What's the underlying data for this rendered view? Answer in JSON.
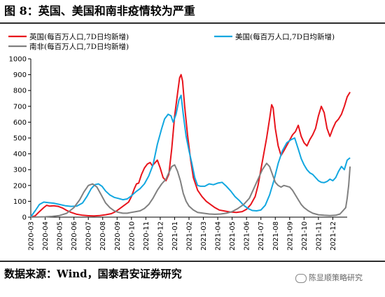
{
  "header": {
    "title": "图 8：英国、美国和南非疫情较为严重"
  },
  "footer": {
    "source": "数据来源：Wind，国泰君安证券研究",
    "watermark": "陈显顺策略研究"
  },
  "chart_data": {
    "type": "line",
    "title": "",
    "xlabel": "",
    "ylabel": "",
    "ylim": [
      0,
      1000
    ],
    "yticks": [
      "0",
      "100",
      "200",
      "300",
      "400",
      "500",
      "600",
      "700",
      "800",
      "900",
      "1000"
    ],
    "xticks": [
      "2020-03",
      "2020-04",
      "2020-05",
      "2020-06",
      "2020-07",
      "2020-08",
      "2020-09",
      "2020-10",
      "2020-11",
      "2020-12",
      "2021-01",
      "2021-02",
      "2021-03",
      "2021-04",
      "2021-05",
      "2021-06",
      "2021-07",
      "2021-08",
      "2021-09",
      "2021-10",
      "2021-11",
      "2021-12"
    ],
    "grid": false,
    "legend_position": "top",
    "series": [
      {
        "name": "英国(每百万人口,7D日均新增)",
        "color": "#e8141c",
        "points": [
          [
            0,
            1
          ],
          [
            0.3,
            8
          ],
          [
            0.6,
            35
          ],
          [
            0.9,
            60
          ],
          [
            1.1,
            75
          ],
          [
            1.3,
            70
          ],
          [
            1.6,
            72
          ],
          [
            1.9,
            68
          ],
          [
            2.2,
            58
          ],
          [
            2.5,
            42
          ],
          [
            2.8,
            30
          ],
          [
            3.2,
            18
          ],
          [
            3.6,
            12
          ],
          [
            4.0,
            9
          ],
          [
            4.4,
            8
          ],
          [
            4.8,
            10
          ],
          [
            5.2,
            15
          ],
          [
            5.6,
            22
          ],
          [
            5.9,
            35
          ],
          [
            6.2,
            55
          ],
          [
            6.5,
            75
          ],
          [
            6.8,
            95
          ],
          [
            7.0,
            130
          ],
          [
            7.2,
            180
          ],
          [
            7.35,
            210
          ],
          [
            7.5,
            215
          ],
          [
            7.7,
            270
          ],
          [
            7.9,
            310
          ],
          [
            8.1,
            335
          ],
          [
            8.3,
            345
          ],
          [
            8.45,
            325
          ],
          [
            8.6,
            340
          ],
          [
            8.8,
            360
          ],
          [
            9.0,
            310
          ],
          [
            9.2,
            250
          ],
          [
            9.4,
            230
          ],
          [
            9.6,
            270
          ],
          [
            9.8,
            430
          ],
          [
            10.0,
            640
          ],
          [
            10.2,
            780
          ],
          [
            10.35,
            880
          ],
          [
            10.45,
            900
          ],
          [
            10.55,
            860
          ],
          [
            10.7,
            700
          ],
          [
            10.9,
            520
          ],
          [
            11.1,
            370
          ],
          [
            11.3,
            250
          ],
          [
            11.6,
            170
          ],
          [
            11.9,
            130
          ],
          [
            12.2,
            100
          ],
          [
            12.5,
            80
          ],
          [
            12.8,
            60
          ],
          [
            13.1,
            45
          ],
          [
            13.5,
            38
          ],
          [
            13.9,
            32
          ],
          [
            14.3,
            30
          ],
          [
            14.7,
            35
          ],
          [
            15.0,
            50
          ],
          [
            15.3,
            80
          ],
          [
            15.6,
            130
          ],
          [
            15.8,
            200
          ],
          [
            16.0,
            300
          ],
          [
            16.2,
            400
          ],
          [
            16.4,
            500
          ],
          [
            16.6,
            620
          ],
          [
            16.75,
            710
          ],
          [
            16.85,
            690
          ],
          [
            17.0,
            560
          ],
          [
            17.2,
            450
          ],
          [
            17.4,
            390
          ],
          [
            17.6,
            420
          ],
          [
            17.9,
            470
          ],
          [
            18.2,
            520
          ],
          [
            18.4,
            540
          ],
          [
            18.6,
            580
          ],
          [
            18.8,
            510
          ],
          [
            19.0,
            470
          ],
          [
            19.2,
            450
          ],
          [
            19.4,
            490
          ],
          [
            19.6,
            520
          ],
          [
            19.8,
            560
          ],
          [
            20.0,
            640
          ],
          [
            20.2,
            700
          ],
          [
            20.4,
            660
          ],
          [
            20.6,
            560
          ],
          [
            20.8,
            510
          ],
          [
            21.0,
            560
          ],
          [
            21.2,
            600
          ],
          [
            21.4,
            620
          ],
          [
            21.6,
            650
          ],
          [
            21.8,
            700
          ],
          [
            22.0,
            760
          ],
          [
            22.2,
            790
          ]
        ]
      },
      {
        "name": "美国(每百万人口,7D日均新增)",
        "color": "#12a7e0",
        "points": [
          [
            0,
            2
          ],
          [
            0.3,
            40
          ],
          [
            0.6,
            80
          ],
          [
            0.9,
            95
          ],
          [
            1.2,
            92
          ],
          [
            1.6,
            88
          ],
          [
            2.0,
            80
          ],
          [
            2.4,
            72
          ],
          [
            2.8,
            68
          ],
          [
            3.2,
            70
          ],
          [
            3.6,
            90
          ],
          [
            3.9,
            130
          ],
          [
            4.2,
            180
          ],
          [
            4.45,
            205
          ],
          [
            4.7,
            210
          ],
          [
            4.95,
            195
          ],
          [
            5.2,
            165
          ],
          [
            5.5,
            140
          ],
          [
            5.8,
            125
          ],
          [
            6.1,
            118
          ],
          [
            6.4,
            110
          ],
          [
            6.7,
            115
          ],
          [
            7.0,
            135
          ],
          [
            7.3,
            160
          ],
          [
            7.6,
            180
          ],
          [
            7.9,
            210
          ],
          [
            8.2,
            260
          ],
          [
            8.5,
            330
          ],
          [
            8.8,
            460
          ],
          [
            9.1,
            560
          ],
          [
            9.3,
            620
          ],
          [
            9.55,
            650
          ],
          [
            9.75,
            640
          ],
          [
            9.9,
            600
          ],
          [
            10.1,
            650
          ],
          [
            10.3,
            740
          ],
          [
            10.45,
            770
          ],
          [
            10.6,
            650
          ],
          [
            10.8,
            510
          ],
          [
            11.0,
            420
          ],
          [
            11.2,
            340
          ],
          [
            11.4,
            250
          ],
          [
            11.6,
            200
          ],
          [
            11.8,
            195
          ],
          [
            12.1,
            195
          ],
          [
            12.4,
            210
          ],
          [
            12.7,
            205
          ],
          [
            13.0,
            215
          ],
          [
            13.3,
            220
          ],
          [
            13.6,
            195
          ],
          [
            13.9,
            165
          ],
          [
            14.2,
            130
          ],
          [
            14.5,
            105
          ],
          [
            14.8,
            75
          ],
          [
            15.1,
            55
          ],
          [
            15.4,
            42
          ],
          [
            15.7,
            40
          ],
          [
            16.0,
            45
          ],
          [
            16.3,
            75
          ],
          [
            16.6,
            140
          ],
          [
            16.9,
            230
          ],
          [
            17.2,
            340
          ],
          [
            17.5,
            420
          ],
          [
            17.8,
            470
          ],
          [
            18.1,
            490
          ],
          [
            18.35,
            500
          ],
          [
            18.6,
            430
          ],
          [
            18.8,
            370
          ],
          [
            19.0,
            330
          ],
          [
            19.2,
            300
          ],
          [
            19.4,
            280
          ],
          [
            19.6,
            270
          ],
          [
            19.8,
            250
          ],
          [
            20.0,
            230
          ],
          [
            20.2,
            220
          ],
          [
            20.4,
            218
          ],
          [
            20.6,
            225
          ],
          [
            20.8,
            240
          ],
          [
            21.0,
            230
          ],
          [
            21.2,
            250
          ],
          [
            21.4,
            290
          ],
          [
            21.6,
            320
          ],
          [
            21.8,
            300
          ],
          [
            22.0,
            360
          ],
          [
            22.2,
            375
          ]
        ]
      },
      {
        "name": "南非(每百万人口,7D日均新增)",
        "color": "#808080",
        "points": [
          [
            0,
            0
          ],
          [
            0.5,
            1
          ],
          [
            1.0,
            2
          ],
          [
            1.5,
            5
          ],
          [
            2.0,
            10
          ],
          [
            2.5,
            25
          ],
          [
            3.0,
            60
          ],
          [
            3.4,
            110
          ],
          [
            3.7,
            160
          ],
          [
            4.0,
            200
          ],
          [
            4.3,
            210
          ],
          [
            4.6,
            190
          ],
          [
            4.9,
            140
          ],
          [
            5.2,
            90
          ],
          [
            5.5,
            60
          ],
          [
            5.8,
            40
          ],
          [
            6.1,
            30
          ],
          [
            6.4,
            25
          ],
          [
            6.7,
            25
          ],
          [
            7.0,
            30
          ],
          [
            7.3,
            35
          ],
          [
            7.6,
            40
          ],
          [
            7.9,
            55
          ],
          [
            8.2,
            80
          ],
          [
            8.5,
            120
          ],
          [
            8.8,
            170
          ],
          [
            9.1,
            210
          ],
          [
            9.4,
            240
          ],
          [
            9.6,
            280
          ],
          [
            9.8,
            320
          ],
          [
            10.0,
            330
          ],
          [
            10.2,
            290
          ],
          [
            10.4,
            230
          ],
          [
            10.6,
            150
          ],
          [
            10.8,
            100
          ],
          [
            11.0,
            70
          ],
          [
            11.3,
            45
          ],
          [
            11.6,
            30
          ],
          [
            12.0,
            25
          ],
          [
            12.4,
            20
          ],
          [
            12.8,
            18
          ],
          [
            13.2,
            20
          ],
          [
            13.6,
            25
          ],
          [
            14.0,
            35
          ],
          [
            14.4,
            55
          ],
          [
            14.8,
            80
          ],
          [
            15.2,
            120
          ],
          [
            15.5,
            180
          ],
          [
            15.8,
            240
          ],
          [
            16.1,
            300
          ],
          [
            16.4,
            340
          ],
          [
            16.6,
            320
          ],
          [
            16.8,
            270
          ],
          [
            17.0,
            220
          ],
          [
            17.2,
            200
          ],
          [
            17.4,
            190
          ],
          [
            17.6,
            200
          ],
          [
            17.8,
            195
          ],
          [
            18.0,
            190
          ],
          [
            18.2,
            170
          ],
          [
            18.4,
            140
          ],
          [
            18.6,
            110
          ],
          [
            18.8,
            80
          ],
          [
            19.0,
            60
          ],
          [
            19.3,
            40
          ],
          [
            19.6,
            25
          ],
          [
            20.0,
            15
          ],
          [
            20.4,
            12
          ],
          [
            20.8,
            10
          ],
          [
            21.2,
            12
          ],
          [
            21.5,
            20
          ],
          [
            21.7,
            40
          ],
          [
            21.9,
            60
          ],
          [
            22.0,
            120
          ],
          [
            22.1,
            200
          ],
          [
            22.2,
            320
          ]
        ]
      }
    ]
  }
}
